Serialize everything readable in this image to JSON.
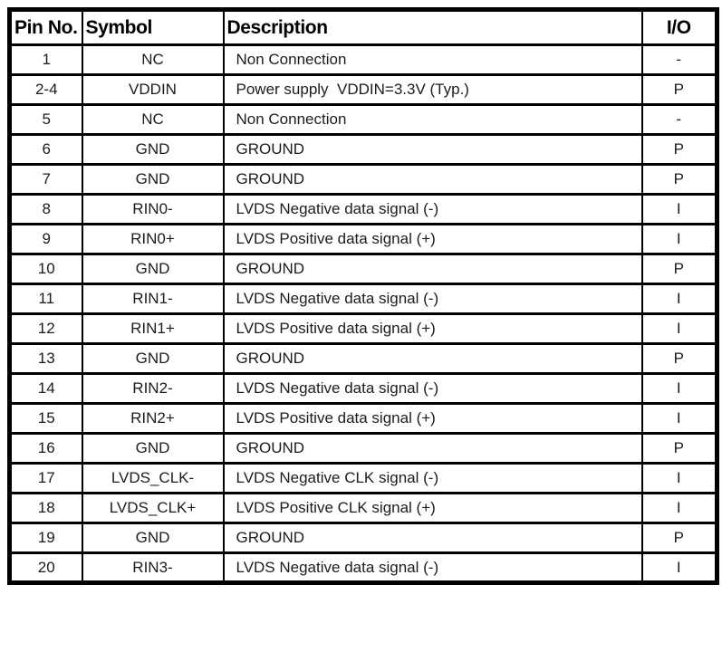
{
  "table": {
    "columns": [
      {
        "label": "Pin No."
      },
      {
        "label": "Symbol"
      },
      {
        "label": "Description"
      },
      {
        "label": "I/O"
      }
    ],
    "rows": [
      {
        "pin": "1",
        "symbol": "NC",
        "description": "Non Connection",
        "io": "-"
      },
      {
        "pin": "2-4",
        "symbol": "VDDIN",
        "description": "Power supply  VDDIN=3.3V (Typ.)",
        "io": "P"
      },
      {
        "pin": "5",
        "symbol": "NC",
        "description": "Non Connection",
        "io": "-"
      },
      {
        "pin": "6",
        "symbol": "GND",
        "description": "GROUND",
        "io": "P"
      },
      {
        "pin": "7",
        "symbol": "GND",
        "description": "GROUND",
        "io": "P"
      },
      {
        "pin": "8",
        "symbol": "RIN0-",
        "description": "LVDS Negative data signal (-)",
        "io": "I"
      },
      {
        "pin": "9",
        "symbol": "RIN0+",
        "description": "LVDS Positive data signal (+)",
        "io": "I"
      },
      {
        "pin": "10",
        "symbol": "GND",
        "description": "GROUND",
        "io": "P"
      },
      {
        "pin": "11",
        "symbol": "RIN1-",
        "description": "LVDS Negative data signal (-)",
        "io": "I"
      },
      {
        "pin": "12",
        "symbol": "RIN1+",
        "description": "LVDS Positive data signal (+)",
        "io": "I"
      },
      {
        "pin": "13",
        "symbol": "GND",
        "description": "GROUND",
        "io": "P"
      },
      {
        "pin": "14",
        "symbol": "RIN2-",
        "description": "LVDS Negative data signal (-)",
        "io": "I"
      },
      {
        "pin": "15",
        "symbol": "RIN2+",
        "description": "LVDS Positive data signal (+)",
        "io": "I"
      },
      {
        "pin": "16",
        "symbol": "GND",
        "description": "GROUND",
        "io": "P"
      },
      {
        "pin": "17",
        "symbol": "LVDS_CLK-",
        "description": "LVDS Negative CLK signal (-)",
        "io": "I"
      },
      {
        "pin": "18",
        "symbol": "LVDS_CLK+",
        "description": "LVDS Positive CLK signal (+)",
        "io": "I"
      },
      {
        "pin": "19",
        "symbol": "GND",
        "description": "GROUND",
        "io": "P"
      },
      {
        "pin": "20",
        "symbol": "RIN3-",
        "description": "LVDS Negative data signal (-)",
        "io": "I"
      }
    ],
    "colors": {
      "border": "#000000",
      "background": "#ffffff",
      "header_text": "#000000",
      "body_text": "#1c1c1c"
    }
  }
}
